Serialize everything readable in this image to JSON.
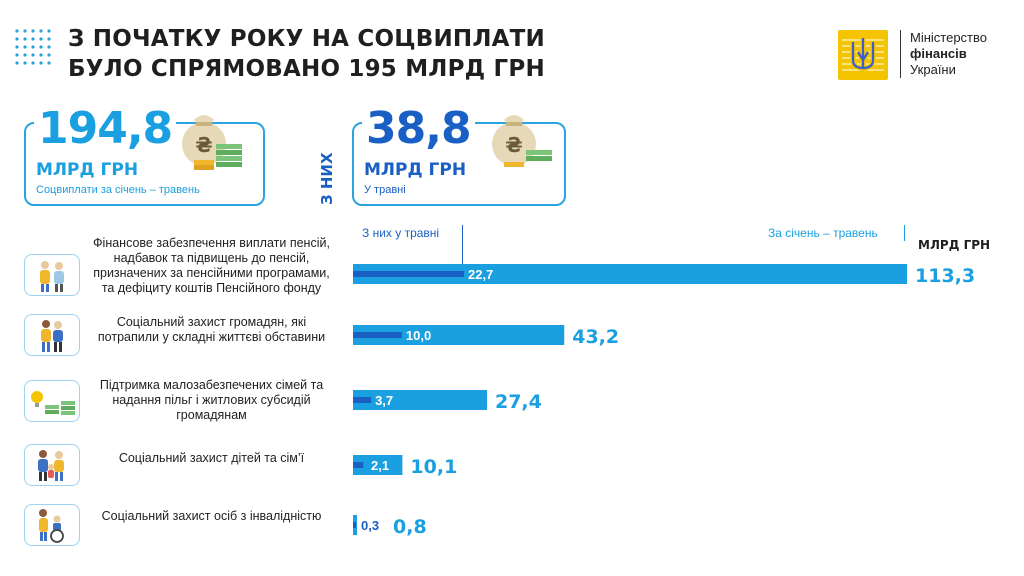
{
  "title": {
    "line1": "З ПОЧАТКУ РОКУ НА СОЦВИПЛАТИ",
    "line2": "БУЛО СПРЯМОВАНО 195 МЛРД ГРН"
  },
  "logo": {
    "line1": "Міністерство",
    "line2": "фінансів",
    "line3": "України"
  },
  "summary": {
    "total": {
      "value": "194,8",
      "unit": "МЛРД ГРН",
      "caption": "Соцвиплати за січень – травень"
    },
    "vertical_label": "З НИХ",
    "may": {
      "value": "38,8",
      "unit": "МЛРД ГРН",
      "caption": "У травні"
    }
  },
  "legend": {
    "may": "З них у травні",
    "total": "За січень – травень",
    "unit": "МЛРД ГРН"
  },
  "colors": {
    "total_bar": "#1aa0e0",
    "may_bar": "#1a5fc4",
    "card_border": "#2aa4df"
  },
  "chart_data": {
    "type": "bar",
    "orientation": "horizontal",
    "categories": [
      "Фінансове забезпечення виплати пенсій, надбавок та підвищень до пенсій, призначених за пенсійними програмами, та дефіциту коштів Пенсійного фонду",
      "Соціальний захист громадян, які потрапили у складні життєві обставини",
      "Підтримка малозабезпечених сімей та надання пільг і житлових субсидій громадянам",
      "Соціальний захист дітей та сім’ї",
      "Соціальний захист осіб з інвалідністю"
    ],
    "series": [
      {
        "name": "За січень – травень",
        "values": [
          113.3,
          43.2,
          27.4,
          10.1,
          0.8
        ],
        "labels": [
          "113,3",
          "43,2",
          "27,4",
          "10,1",
          "0,8"
        ]
      },
      {
        "name": "З них у травні",
        "values": [
          22.7,
          10.0,
          3.7,
          2.1,
          0.3
        ],
        "labels": [
          "22,7",
          "10,0",
          "3,7",
          "2,1",
          "0,3"
        ]
      }
    ],
    "icons": [
      "pensioners-icon",
      "family-help-icon",
      "subsidy-icon",
      "children-family-icon",
      "disability-icon"
    ]
  }
}
